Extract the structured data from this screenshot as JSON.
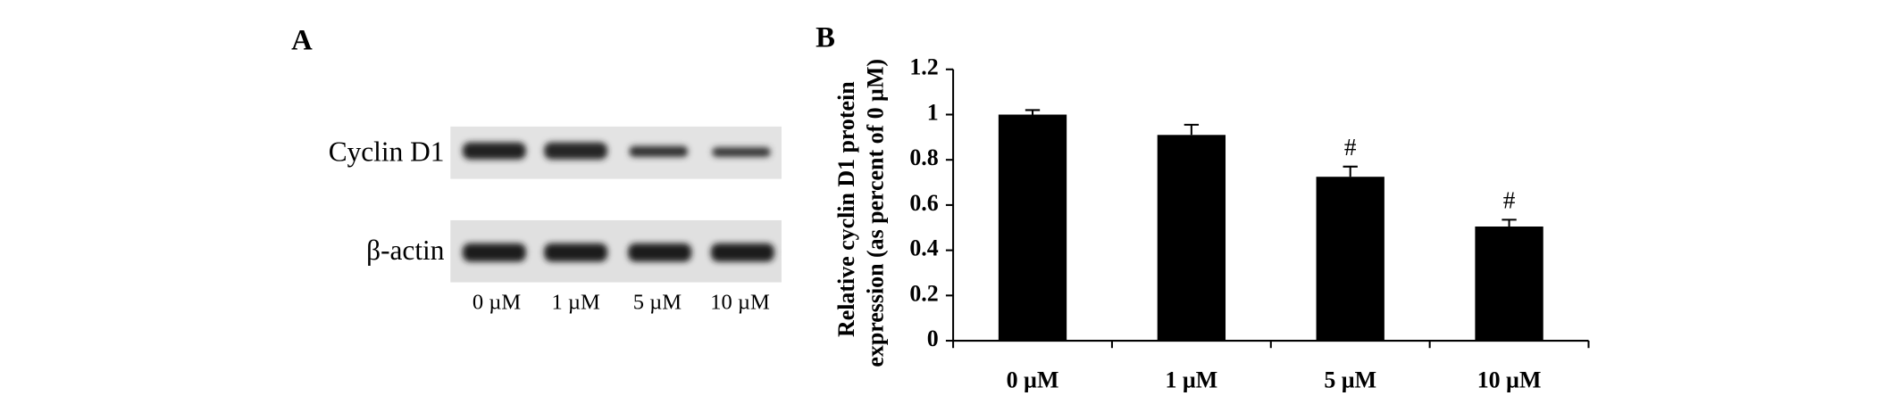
{
  "panel_a": {
    "label": "A",
    "rows": [
      "Cyclin D1",
      "β-actin"
    ],
    "lanes": [
      "0 µM",
      "1 µM",
      "5 µM",
      "10 µM"
    ]
  },
  "chart_data": {
    "type": "bar",
    "panel_label": "B",
    "y_label_lines": [
      "Relative cyclin D1 protein",
      "expression  (as percent of 0 µM)"
    ],
    "categories": [
      "0 µM",
      "1 µM",
      "5 µM",
      "10 µM"
    ],
    "values": [
      1.0,
      0.91,
      0.725,
      0.505
    ],
    "errors": [
      0.02,
      0.045,
      0.045,
      0.03
    ],
    "annotations": [
      null,
      null,
      "#",
      "#"
    ],
    "color": "#000000",
    "ylim": [
      0,
      1.2
    ],
    "yticks": [
      0,
      0.2,
      0.4,
      0.6,
      0.8,
      1,
      1.2
    ],
    "grid": false
  }
}
